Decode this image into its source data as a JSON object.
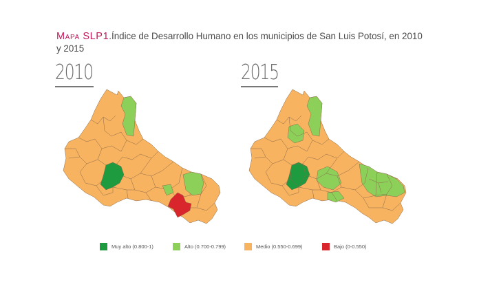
{
  "title": {
    "label": "Mapa SLP1",
    "text": ".Índice de Desarrollo Humano en los municipios de San Luis Potosí, en 2010 y 2015"
  },
  "maps": [
    {
      "year": "2010",
      "highlights": [
        {
          "region": "north-strip",
          "class": "alto"
        },
        {
          "region": "west-center",
          "class": "muy_alto"
        },
        {
          "region": "east-south",
          "class": "alto"
        },
        {
          "region": "east-pocket",
          "class": "bajo"
        }
      ]
    },
    {
      "year": "2015",
      "highlights": [
        {
          "region": "north-strip",
          "class": "alto"
        },
        {
          "region": "west-center",
          "class": "muy_alto"
        },
        {
          "region": "center",
          "class": "alto"
        },
        {
          "region": "east",
          "class": "alto"
        }
      ]
    }
  ],
  "legend": [
    {
      "key": "muy_alto",
      "label": "Muy alto (0.800-1)",
      "color": "#1e9a3f"
    },
    {
      "key": "alto",
      "label": "Alto (0.700-0.799)",
      "color": "#8cd05a"
    },
    {
      "key": "medio",
      "label": "Medio (0.550-0.699)",
      "color": "#f7b35f"
    },
    {
      "key": "bajo",
      "label": "Bajo (0-0.550)",
      "color": "#d9262c"
    }
  ]
}
